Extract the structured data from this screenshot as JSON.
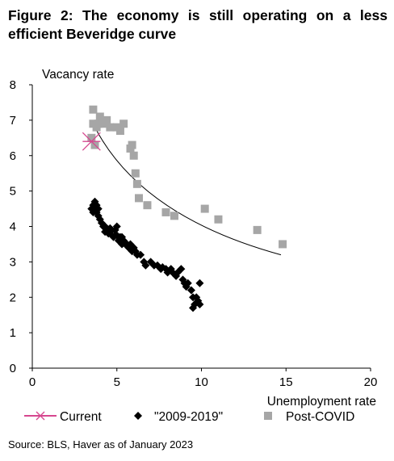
{
  "title": "Figure 2: The economy is still operating on a less efficient Beveridge curve",
  "source": "Source: BLS, Haver as of January 2023",
  "chart_data": {
    "type": "scatter",
    "ylabel": "Vacancy rate",
    "xlabel": "Unemployment rate",
    "xlim": [
      0,
      20
    ],
    "ylim": [
      0,
      8
    ],
    "xticks": [
      "0",
      "5",
      "10",
      "15",
      "20"
    ],
    "yticks": [
      "0",
      "1",
      "2",
      "3",
      "4",
      "5",
      "6",
      "7",
      "8"
    ],
    "grid": false,
    "legend_position": "bottom",
    "colors": {
      "current": "#d6478f",
      "series2009": "#000000",
      "postcovid": "#a6a6a6",
      "fit": "#000000"
    },
    "legend": [
      {
        "label": "Current",
        "marker": "asterisk"
      },
      {
        "label": "\"2009-2019\"",
        "marker": "diamond"
      },
      {
        "label": "Post-COVID",
        "marker": "square"
      }
    ],
    "series": [
      {
        "name": "Current",
        "points": [
          [
            3.5,
            6.4
          ]
        ]
      },
      {
        "name": "\"2009-2019\"",
        "points": [
          [
            3.5,
            4.5
          ],
          [
            3.6,
            4.4
          ],
          [
            3.6,
            4.6
          ],
          [
            3.7,
            4.7
          ],
          [
            3.7,
            4.5
          ],
          [
            3.8,
            4.6
          ],
          [
            3.8,
            4.4
          ],
          [
            3.9,
            4.3
          ],
          [
            3.9,
            4.5
          ],
          [
            4.0,
            4.2
          ],
          [
            4.1,
            4.1
          ],
          [
            4.2,
            4.0
          ],
          [
            4.3,
            4.0
          ],
          [
            4.3,
            3.85
          ],
          [
            4.4,
            3.9
          ],
          [
            4.5,
            3.8
          ],
          [
            4.6,
            3.8
          ],
          [
            4.6,
            3.95
          ],
          [
            4.7,
            3.9
          ],
          [
            4.8,
            3.7
          ],
          [
            4.9,
            3.9
          ],
          [
            4.9,
            3.75
          ],
          [
            5.0,
            4.0
          ],
          [
            5.0,
            3.75
          ],
          [
            5.1,
            3.6
          ],
          [
            5.2,
            3.7
          ],
          [
            5.3,
            3.7
          ],
          [
            5.3,
            3.5
          ],
          [
            5.4,
            3.6
          ],
          [
            5.5,
            3.5
          ],
          [
            5.6,
            3.5
          ],
          [
            5.7,
            3.4
          ],
          [
            5.8,
            3.5
          ],
          [
            5.9,
            3.3
          ],
          [
            6.0,
            3.4
          ],
          [
            6.1,
            3.3
          ],
          [
            6.2,
            3.2
          ],
          [
            6.4,
            3.2
          ],
          [
            6.6,
            3.0
          ],
          [
            6.7,
            2.9
          ],
          [
            7.0,
            3.0
          ],
          [
            7.2,
            2.9
          ],
          [
            7.4,
            2.9
          ],
          [
            7.6,
            2.8
          ],
          [
            7.7,
            2.85
          ],
          [
            7.9,
            2.8
          ],
          [
            8.0,
            2.7
          ],
          [
            8.2,
            2.8
          ],
          [
            8.3,
            2.7
          ],
          [
            8.5,
            2.6
          ],
          [
            8.6,
            2.7
          ],
          [
            8.8,
            2.8
          ],
          [
            8.9,
            2.5
          ],
          [
            9.0,
            2.4
          ],
          [
            9.1,
            2.3
          ],
          [
            9.2,
            2.4
          ],
          [
            9.4,
            2.2
          ],
          [
            9.5,
            2.0
          ],
          [
            9.6,
            1.8
          ],
          [
            9.7,
            2.0
          ],
          [
            9.8,
            1.9
          ],
          [
            9.9,
            1.8
          ],
          [
            9.9,
            2.4
          ],
          [
            9.5,
            1.7
          ]
        ]
      },
      {
        "name": "Post-COVID",
        "points": [
          [
            3.6,
            7.3
          ],
          [
            3.6,
            6.9
          ],
          [
            3.5,
            6.5
          ],
          [
            3.7,
            6.3
          ],
          [
            3.8,
            6.8
          ],
          [
            3.9,
            6.9
          ],
          [
            4.0,
            7.1
          ],
          [
            4.2,
            6.9
          ],
          [
            4.4,
            7.0
          ],
          [
            4.6,
            6.8
          ],
          [
            5.0,
            6.8
          ],
          [
            5.2,
            6.7
          ],
          [
            5.4,
            6.9
          ],
          [
            5.8,
            6.2
          ],
          [
            5.9,
            6.3
          ],
          [
            6.0,
            6.0
          ],
          [
            6.1,
            5.5
          ],
          [
            6.2,
            5.2
          ],
          [
            6.3,
            4.8
          ],
          [
            6.8,
            4.6
          ],
          [
            7.9,
            4.4
          ],
          [
            8.4,
            4.3
          ],
          [
            10.2,
            4.5
          ],
          [
            11.0,
            4.2
          ],
          [
            13.3,
            3.9
          ],
          [
            14.8,
            3.5
          ]
        ]
      }
    ],
    "trendline": {
      "type": "power",
      "from": [
        3.7,
        6.8
      ],
      "to": [
        14.7,
        3.2
      ],
      "curvature": 0.7
    }
  }
}
